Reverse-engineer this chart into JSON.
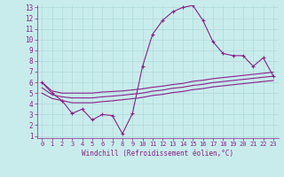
{
  "xlabel": "Windchill (Refroidissement éolien,°C)",
  "bg_color": "#c8ecec",
  "line_color": "#882288",
  "grid_color": "#b0d8d8",
  "x_main": [
    0,
    1,
    2,
    3,
    4,
    5,
    6,
    7,
    8,
    9,
    10,
    11,
    12,
    13,
    14,
    15,
    16,
    17,
    18,
    19,
    20,
    21,
    22,
    23
  ],
  "y_main": [
    6.0,
    5.0,
    4.3,
    3.1,
    3.5,
    2.5,
    3.0,
    2.9,
    1.2,
    3.1,
    7.5,
    10.5,
    11.8,
    12.6,
    13.0,
    13.2,
    11.8,
    9.8,
    8.7,
    8.5,
    8.5,
    7.5,
    8.3,
    6.6
  ],
  "y_line1": [
    6.0,
    5.2,
    5.0,
    5.0,
    5.0,
    5.0,
    5.1,
    5.15,
    5.2,
    5.3,
    5.4,
    5.55,
    5.65,
    5.8,
    5.9,
    6.1,
    6.2,
    6.35,
    6.45,
    6.55,
    6.65,
    6.75,
    6.85,
    6.95
  ],
  "y_line2": [
    5.5,
    4.85,
    4.65,
    4.55,
    4.55,
    4.55,
    4.65,
    4.72,
    4.8,
    4.9,
    5.0,
    5.18,
    5.28,
    5.45,
    5.55,
    5.72,
    5.82,
    5.98,
    6.08,
    6.18,
    6.28,
    6.38,
    6.48,
    6.58
  ],
  "y_line3": [
    5.0,
    4.5,
    4.3,
    4.1,
    4.1,
    4.1,
    4.2,
    4.28,
    4.38,
    4.48,
    4.6,
    4.78,
    4.88,
    5.05,
    5.15,
    5.32,
    5.42,
    5.58,
    5.68,
    5.78,
    5.88,
    5.98,
    6.08,
    6.18
  ],
  "ylim": [
    1,
    13
  ],
  "xlim": [
    0,
    23
  ],
  "yticks": [
    1,
    2,
    3,
    4,
    5,
    6,
    7,
    8,
    9,
    10,
    11,
    12,
    13
  ],
  "xticks": [
    0,
    1,
    2,
    3,
    4,
    5,
    6,
    7,
    8,
    9,
    10,
    11,
    12,
    13,
    14,
    15,
    16,
    17,
    18,
    19,
    20,
    21,
    22,
    23
  ],
  "xlabel_fontsize": 5.5,
  "tick_fontsize_x": 5.0,
  "tick_fontsize_y": 5.5
}
